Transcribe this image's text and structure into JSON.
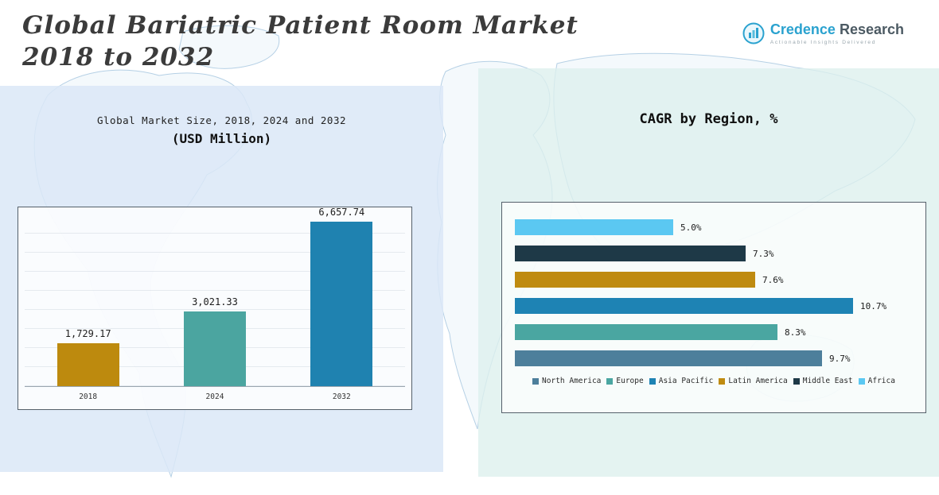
{
  "header": {
    "title_line1": "Global Bariatric Patient Room Market",
    "title_line2": "2018 to 2032"
  },
  "logo": {
    "brand_primary": "Credence",
    "brand_secondary": " Research",
    "tagline": "Actionable Insights Delivered",
    "accent_color": "#2aa2cf"
  },
  "chart_data": [
    {
      "type": "bar",
      "orientation": "vertical",
      "title": "Global Market Size, 2018, 2024 and 2032",
      "subtitle": "(USD Million)",
      "categories": [
        "2018",
        "2024",
        "2032"
      ],
      "values": [
        1729.17,
        3021.33,
        6657.74
      ],
      "value_labels": [
        "1,729.17",
        "3,021.33",
        "6,657.74"
      ],
      "colors": [
        "#bd8a0e",
        "#4ba5a0",
        "#1f82b0"
      ],
      "ylim": [
        0,
        7000
      ],
      "grid": true,
      "legend_position": "none"
    },
    {
      "type": "bar",
      "orientation": "horizontal",
      "title": "CAGR by Region, %",
      "categories": [
        "North America",
        "Europe",
        "Asia Pacific",
        "Latin America",
        "Middle East",
        "Africa"
      ],
      "values": [
        9.7,
        8.3,
        10.7,
        7.6,
        7.3,
        5.0
      ],
      "value_labels": [
        "9.7%",
        "8.3%",
        "10.7%",
        "7.6%",
        "7.3%",
        "5.0%"
      ],
      "colors": {
        "North America": "#4d7f9b",
        "Europe": "#4aa6a1",
        "Asia Pacific": "#1e83b4",
        "Latin America": "#bf8b10",
        "Middle East": "#1e3947",
        "Africa": "#5bc8f2"
      },
      "row_order_top_to_bottom": [
        "Africa",
        "Middle East",
        "Latin America",
        "Asia Pacific",
        "Europe",
        "North America"
      ],
      "xlim": [
        0,
        12
      ],
      "grid": false,
      "legend_position": "bottom"
    }
  ]
}
